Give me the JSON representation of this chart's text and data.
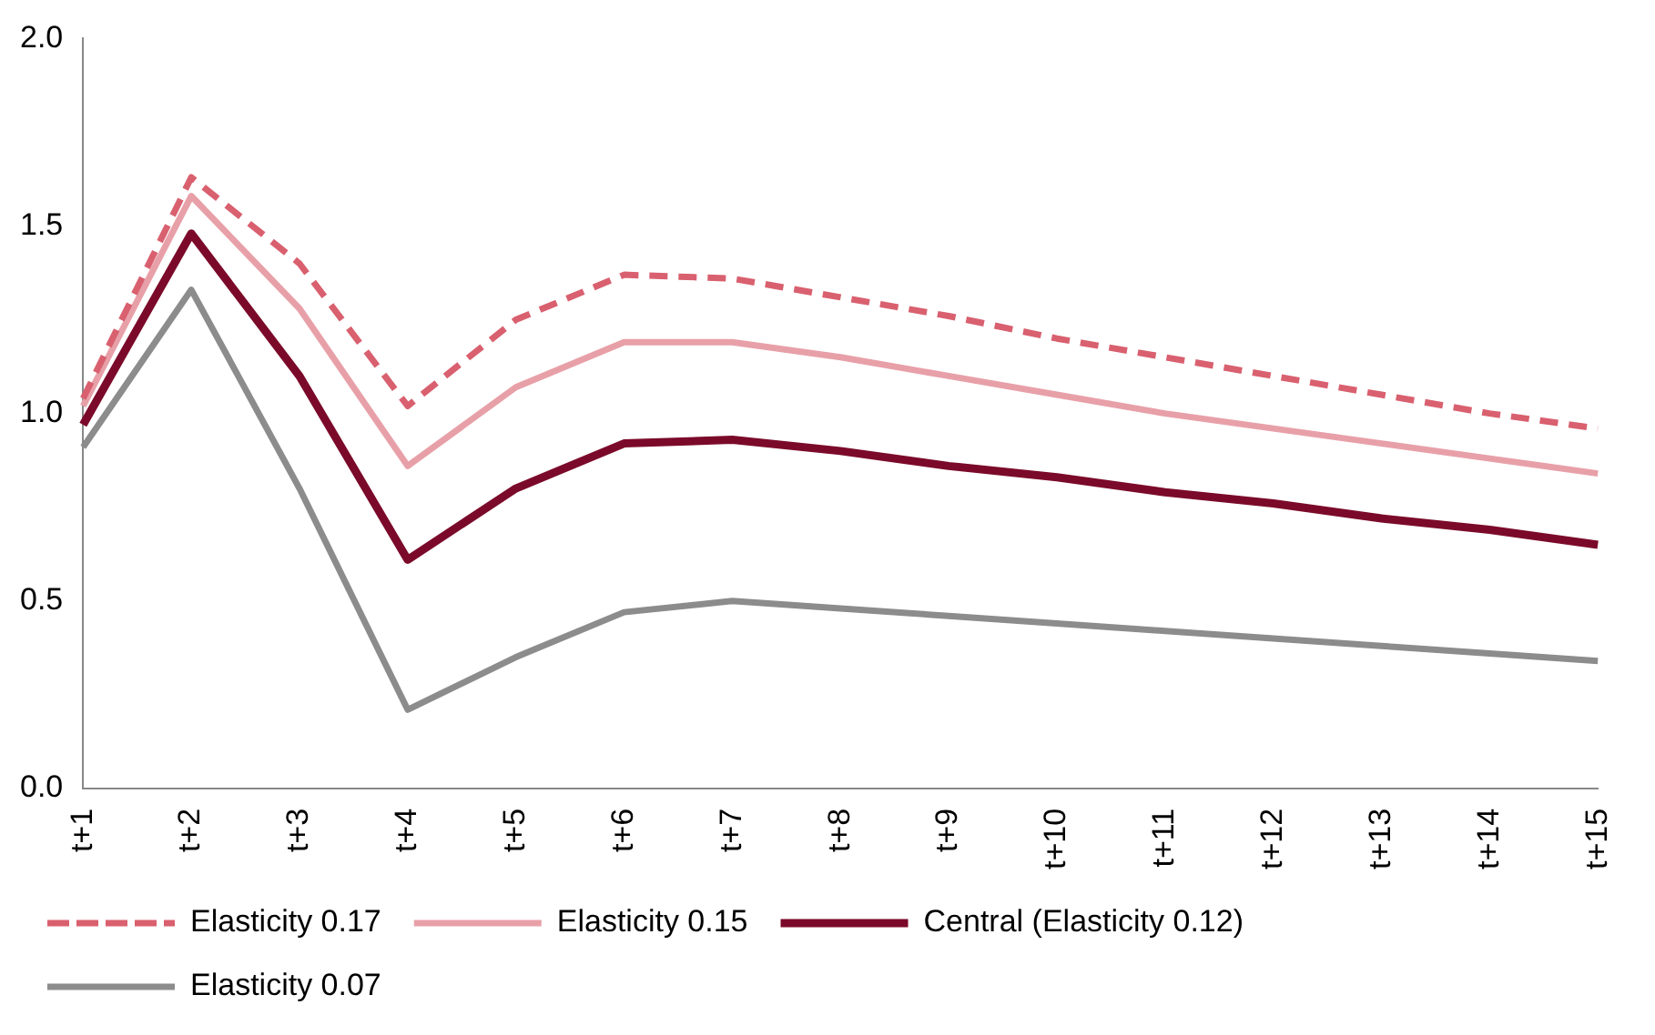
{
  "chart_data": {
    "type": "line",
    "categories": [
      "t+1",
      "t+2",
      "t+3",
      "t+4",
      "t+5",
      "t+6",
      "t+7",
      "t+8",
      "t+9",
      "t+10",
      "t+11",
      "t+12",
      "t+13",
      "t+14",
      "t+15"
    ],
    "series": [
      {
        "name": "Elasticity 0.17",
        "color": "#d9606f",
        "line_style": "dashed",
        "values": [
          1.04,
          1.63,
          1.4,
          1.02,
          1.25,
          1.37,
          1.36,
          1.31,
          1.26,
          1.2,
          1.15,
          1.1,
          1.05,
          1.0,
          0.96
        ]
      },
      {
        "name": "Elasticity 0.15",
        "color": "#e8a0a8",
        "line_style": "solid",
        "values": [
          1.02,
          1.58,
          1.28,
          0.86,
          1.07,
          1.19,
          1.19,
          1.15,
          1.1,
          1.05,
          1.0,
          0.96,
          0.92,
          0.88,
          0.84
        ]
      },
      {
        "name": "Central (Elasticity 0.12)",
        "color": "#7b0a2a",
        "line_style": "solid",
        "values": [
          0.97,
          1.48,
          1.1,
          0.61,
          0.8,
          0.92,
          0.93,
          0.9,
          0.86,
          0.83,
          0.79,
          0.76,
          0.72,
          0.69,
          0.65
        ]
      },
      {
        "name": "Elasticity 0.07",
        "color": "#8c8c8c",
        "line_style": "solid",
        "values": [
          0.91,
          1.33,
          0.8,
          0.21,
          0.35,
          0.47,
          0.5,
          0.48,
          0.46,
          0.44,
          0.42,
          0.4,
          0.38,
          0.36,
          0.34
        ]
      }
    ],
    "ylim": [
      0,
      2.0
    ],
    "yticks": [
      {
        "value": 0,
        "label": "0.0"
      },
      {
        "value": 0.5,
        "label": "0.5"
      },
      {
        "value": 1,
        "label": "1.0"
      },
      {
        "value": 1.5,
        "label": "1.5"
      },
      {
        "value": 2,
        "label": "2.0"
      }
    ],
    "grid": false,
    "legend": "bottom",
    "marker": "none"
  }
}
